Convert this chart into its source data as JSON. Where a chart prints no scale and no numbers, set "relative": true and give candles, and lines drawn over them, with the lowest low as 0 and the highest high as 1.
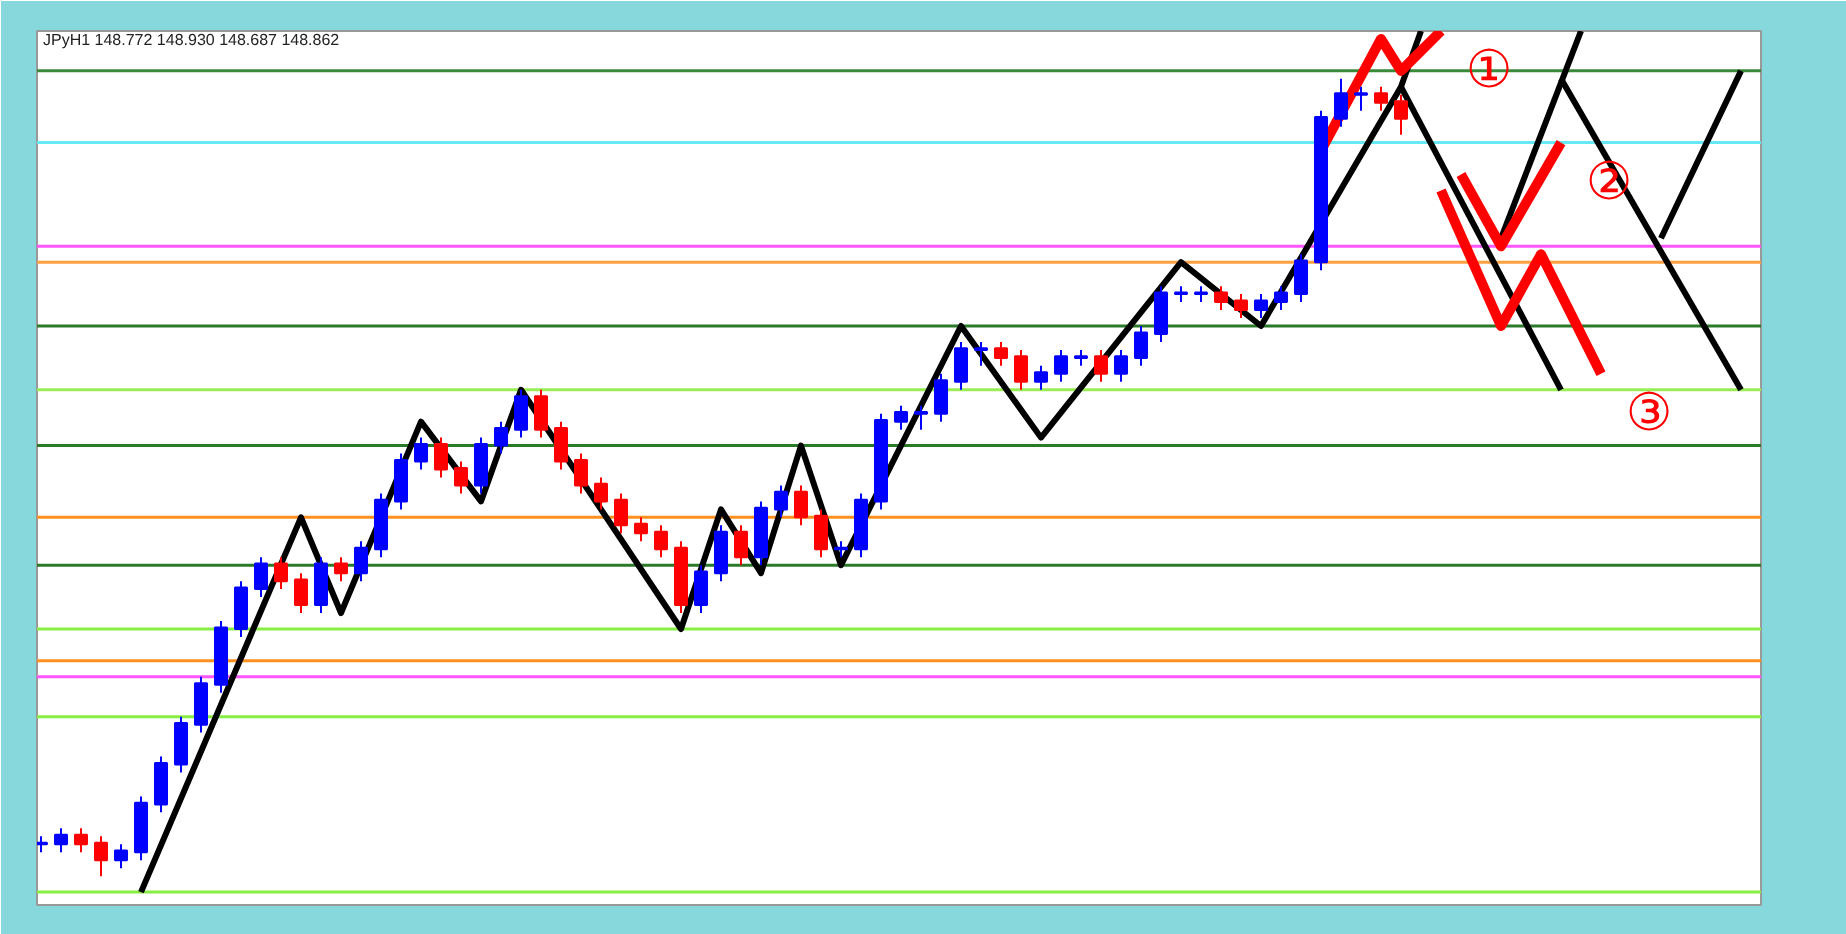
{
  "chart_data": {
    "type": "candlestick",
    "relative": true,
    "title": "JPyH1 148.772 148.930 148.687 148.862",
    "categories": [
      null,
      null,
      null,
      null,
      null,
      null,
      null,
      null,
      null,
      null,
      null,
      null,
      null,
      null,
      null,
      null,
      null,
      null,
      null,
      null,
      null,
      null,
      null,
      null,
      null,
      null,
      null,
      null,
      null,
      null,
      null,
      null,
      null,
      null,
      null,
      null,
      null,
      null,
      null,
      null,
      null,
      null,
      null,
      null,
      null,
      null,
      null,
      null,
      null,
      null,
      null,
      null,
      null,
      null,
      null,
      null,
      null,
      null,
      null,
      null,
      null,
      null,
      null,
      null,
      null,
      null,
      null,
      null,
      null,
      null,
      null,
      null,
      null,
      null,
      null,
      null,
      null,
      null,
      null,
      null,
      null,
      null,
      null,
      null,
      null,
      null
    ],
    "ohlc": [
      [
        0.04,
        0.05,
        0.03,
        0.04
      ],
      [
        0.04,
        0.06,
        0.03,
        0.05
      ],
      [
        0.05,
        0.06,
        0.03,
        0.04
      ],
      [
        0.04,
        0.05,
        0.0,
        0.02
      ],
      [
        0.02,
        0.04,
        0.01,
        0.03
      ],
      [
        0.03,
        0.1,
        0.02,
        0.09
      ],
      [
        0.09,
        0.15,
        0.08,
        0.14
      ],
      [
        0.14,
        0.2,
        0.13,
        0.19
      ],
      [
        0.19,
        0.25,
        0.18,
        0.24
      ],
      [
        0.24,
        0.32,
        0.23,
        0.31
      ],
      [
        0.31,
        0.37,
        0.3,
        0.36
      ],
      [
        0.36,
        0.4,
        0.35,
        0.39
      ],
      [
        0.39,
        0.4,
        0.36,
        0.37
      ],
      [
        0.37,
        0.38,
        0.33,
        0.34
      ],
      [
        0.34,
        0.4,
        0.33,
        0.39
      ],
      [
        0.39,
        0.4,
        0.37,
        0.38
      ],
      [
        0.38,
        0.42,
        0.37,
        0.41
      ],
      [
        0.41,
        0.48,
        0.4,
        0.47
      ],
      [
        0.47,
        0.53,
        0.46,
        0.52
      ],
      [
        0.52,
        0.55,
        0.51,
        0.54
      ],
      [
        0.54,
        0.55,
        0.5,
        0.51
      ],
      [
        0.51,
        0.52,
        0.48,
        0.49
      ],
      [
        0.49,
        0.55,
        0.48,
        0.54
      ],
      [
        0.54,
        0.57,
        0.53,
        0.56
      ],
      [
        0.56,
        0.61,
        0.55,
        0.6
      ],
      [
        0.6,
        0.61,
        0.55,
        0.56
      ],
      [
        0.56,
        0.57,
        0.51,
        0.52
      ],
      [
        0.52,
        0.53,
        0.48,
        0.49
      ],
      [
        0.49,
        0.5,
        0.46,
        0.47
      ],
      [
        0.47,
        0.48,
        0.43,
        0.44
      ],
      [
        0.44,
        0.45,
        0.42,
        0.43
      ],
      [
        0.43,
        0.44,
        0.4,
        0.41
      ],
      [
        0.41,
        0.42,
        0.33,
        0.34
      ],
      [
        0.34,
        0.39,
        0.33,
        0.38
      ],
      [
        0.38,
        0.44,
        0.37,
        0.43
      ],
      [
        0.43,
        0.44,
        0.39,
        0.4
      ],
      [
        0.4,
        0.47,
        0.39,
        0.46
      ],
      [
        0.46,
        0.49,
        0.45,
        0.48
      ],
      [
        0.48,
        0.49,
        0.44,
        0.45
      ],
      [
        0.45,
        0.46,
        0.4,
        0.41
      ],
      [
        0.41,
        0.42,
        0.4,
        0.41
      ],
      [
        0.41,
        0.48,
        0.4,
        0.47
      ],
      [
        0.47,
        0.58,
        0.46,
        0.57
      ],
      [
        0.57,
        0.59,
        0.56,
        0.58
      ],
      [
        0.58,
        0.59,
        0.56,
        0.58
      ],
      [
        0.58,
        0.63,
        0.57,
        0.62
      ],
      [
        0.62,
        0.67,
        0.61,
        0.66
      ],
      [
        0.66,
        0.67,
        0.64,
        0.66
      ],
      [
        0.66,
        0.67,
        0.64,
        0.65
      ],
      [
        0.65,
        0.66,
        0.61,
        0.62
      ],
      [
        0.62,
        0.64,
        0.61,
        0.63
      ],
      [
        0.63,
        0.66,
        0.62,
        0.65
      ],
      [
        0.65,
        0.66,
        0.64,
        0.65
      ],
      [
        0.65,
        0.66,
        0.62,
        0.63
      ],
      [
        0.63,
        0.66,
        0.62,
        0.65
      ],
      [
        0.65,
        0.69,
        0.64,
        0.68
      ],
      [
        0.68,
        0.74,
        0.67,
        0.73
      ],
      [
        0.73,
        0.74,
        0.72,
        0.73
      ],
      [
        0.73,
        0.74,
        0.72,
        0.73
      ],
      [
        0.73,
        0.74,
        0.71,
        0.72
      ],
      [
        0.72,
        0.73,
        0.7,
        0.71
      ],
      [
        0.71,
        0.73,
        0.7,
        0.72
      ],
      [
        0.72,
        0.74,
        0.71,
        0.73
      ],
      [
        0.73,
        0.78,
        0.72,
        0.77
      ],
      [
        0.77,
        0.96,
        0.76,
        0.95
      ],
      [
        0.95,
        1.0,
        0.94,
        0.98
      ],
      [
        0.98,
        0.99,
        0.96,
        0.98
      ],
      [
        0.98,
        0.99,
        0.96,
        0.97
      ],
      [
        0.97,
        0.98,
        0.93,
        0.95
      ],
      null,
      null,
      null,
      null,
      null,
      null,
      null,
      null,
      null,
      null,
      null,
      null,
      null,
      null,
      null,
      null,
      null
    ],
    "colors": [
      "#0000ff",
      "#0000ff",
      "#ff0000",
      "#ff0000",
      "#0000ff",
      "#0000ff",
      "#0000ff",
      "#0000ff",
      "#0000ff",
      "#0000ff",
      "#0000ff",
      "#0000ff",
      "#ff0000",
      "#ff0000",
      "#0000ff",
      "#ff0000",
      "#0000ff",
      "#0000ff",
      "#0000ff",
      "#0000ff",
      "#ff0000",
      "#ff0000",
      "#0000ff",
      "#0000ff",
      "#0000ff",
      "#ff0000",
      "#ff0000",
      "#ff0000",
      "#ff0000",
      "#ff0000",
      "#ff0000",
      "#ff0000",
      "#ff0000",
      "#0000ff",
      "#0000ff",
      "#ff0000",
      "#0000ff",
      "#0000ff",
      "#ff0000",
      "#ff0000",
      "#0000ff",
      "#0000ff",
      "#0000ff",
      "#0000ff",
      "#0000ff",
      "#0000ff",
      "#0000ff",
      "#0000ff",
      "#ff0000",
      "#ff0000",
      "#0000ff",
      "#0000ff",
      "#0000ff",
      "#ff0000",
      "#0000ff",
      "#0000ff",
      "#0000ff",
      "#0000ff",
      "#0000ff",
      "#ff0000",
      "#ff0000",
      "#0000ff",
      "#0000ff",
      "#0000ff",
      "#0000ff",
      "#0000ff",
      "#0000ff",
      "#ff0000",
      "#ff0000",
      null,
      null,
      null,
      null,
      null,
      null,
      null,
      null,
      null,
      null,
      null,
      null,
      null,
      null,
      null,
      null,
      null
    ],
    "series": [
      {
        "type": "line",
        "color": "#000000",
        "values": [
          null,
          null,
          null,
          null,
          null,
          -0.02,
          null,
          null,
          null,
          null,
          null,
          null,
          null,
          0.45,
          null,
          0.33,
          null,
          null,
          null,
          0.57,
          null,
          null,
          0.47,
          null,
          0.61,
          null,
          null,
          null,
          null,
          null,
          null,
          null,
          0.31,
          null,
          0.46,
          null,
          0.38,
          null,
          0.54,
          null,
          0.39,
          null,
          null,
          null,
          null,
          null,
          0.69,
          null,
          null,
          null,
          0.55,
          null,
          null,
          null,
          null,
          null,
          null,
          0.77,
          null,
          null,
          null,
          0.69,
          null,
          null,
          null,
          null,
          null,
          null,
          0.99,
          1.06,
          null,
          null,
          null,
          null,
          null,
          null,
          null,
          null,
          null,
          null,
          null,
          null,
          null,
          null,
          null,
          null
        ]
      },
      {
        "type": "line",
        "color": "#000000",
        "values": [
          null,
          null,
          null,
          null,
          null,
          null,
          null,
          null,
          null,
          null,
          null,
          null,
          null,
          null,
          null,
          null,
          null,
          null,
          null,
          null,
          null,
          null,
          null,
          null,
          null,
          null,
          null,
          null,
          null,
          null,
          null,
          null,
          null,
          null,
          null,
          null,
          null,
          null,
          null,
          null,
          null,
          null,
          null,
          null,
          null,
          null,
          null,
          null,
          null,
          null,
          null,
          null,
          null,
          null,
          null,
          null,
          null,
          null,
          null,
          null,
          null,
          null,
          null,
          null,
          null,
          null,
          null,
          null,
          0.99,
          null,
          null,
          null,
          null,
          null,
          null,
          null,
          0.61,
          null,
          null,
          null,
          null,
          null,
          null,
          null,
          null,
          null
        ]
      },
      {
        "type": "line",
        "color": "#000000",
        "values": [
          null,
          null,
          null,
          null,
          null,
          null,
          null,
          null,
          null,
          null,
          null,
          null,
          null,
          null,
          null,
          null,
          null,
          null,
          null,
          null,
          null,
          null,
          null,
          null,
          null,
          null,
          null,
          null,
          null,
          null,
          null,
          null,
          null,
          null,
          null,
          null,
          null,
          null,
          null,
          null,
          null,
          null,
          null,
          null,
          null,
          null,
          null,
          null,
          null,
          null,
          null,
          null,
          null,
          null,
          null,
          null,
          null,
          null,
          null,
          null,
          null,
          null,
          null,
          null,
          null,
          null,
          null,
          null,
          null,
          null,
          null,
          null,
          null,
          0.8,
          null,
          null,
          null,
          1.06,
          null,
          null,
          null,
          null,
          null,
          null,
          null,
          null
        ]
      },
      {
        "type": "line",
        "color": "#000000",
        "values": [
          null,
          null,
          null,
          null,
          null,
          null,
          null,
          null,
          null,
          null,
          null,
          null,
          null,
          null,
          null,
          null,
          null,
          null,
          null,
          null,
          null,
          null,
          null,
          null,
          null,
          null,
          null,
          null,
          null,
          null,
          null,
          null,
          null,
          null,
          null,
          null,
          null,
          null,
          null,
          null,
          null,
          null,
          null,
          null,
          null,
          null,
          null,
          null,
          null,
          null,
          null,
          null,
          null,
          null,
          null,
          null,
          null,
          null,
          null,
          null,
          null,
          null,
          null,
          null,
          null,
          null,
          null,
          null,
          null,
          null,
          null,
          null,
          null,
          null,
          null,
          null,
          1.0,
          null,
          null,
          null,
          null,
          null,
          null,
          null,
          null,
          0.61
        ]
      },
      {
        "type": "line",
        "color": "#000000",
        "values": [
          null,
          null,
          null,
          null,
          null,
          null,
          null,
          null,
          null,
          null,
          null,
          null,
          null,
          null,
          null,
          null,
          null,
          null,
          null,
          null,
          null,
          null,
          null,
          null,
          null,
          null,
          null,
          null,
          null,
          null,
          null,
          null,
          null,
          null,
          null,
          null,
          null,
          null,
          null,
          null,
          null,
          null,
          null,
          null,
          null,
          null,
          null,
          null,
          null,
          null,
          null,
          null,
          null,
          null,
          null,
          null,
          null,
          null,
          null,
          null,
          null,
          null,
          null,
          null,
          null,
          null,
          null,
          null,
          null,
          null,
          null,
          null,
          null,
          null,
          null,
          null,
          null,
          null,
          null,
          null,
          null,
          0.8,
          null,
          null,
          null,
          1.01
        ]
      },
      {
        "type": "line",
        "color": "#ff0000",
        "values": [
          null,
          null,
          null,
          null,
          null,
          null,
          null,
          null,
          null,
          null,
          null,
          null,
          null,
          null,
          null,
          null,
          null,
          null,
          null,
          null,
          null,
          null,
          null,
          null,
          null,
          null,
          null,
          null,
          null,
          null,
          null,
          null,
          null,
          null,
          null,
          null,
          null,
          null,
          null,
          null,
          null,
          null,
          null,
          null,
          null,
          null,
          null,
          null,
          null,
          null,
          null,
          null,
          null,
          null,
          null,
          null,
          null,
          null,
          null,
          null,
          null,
          null,
          null,
          null,
          0.91,
          null,
          null,
          1.05,
          1.01,
          null,
          1.06,
          null,
          null,
          null,
          null,
          null,
          null,
          null,
          null,
          null,
          null,
          null,
          null,
          null,
          null,
          null
        ]
      },
      {
        "type": "line",
        "color": "#ff0000",
        "values": [
          null,
          null,
          null,
          null,
          null,
          null,
          null,
          null,
          null,
          null,
          null,
          null,
          null,
          null,
          null,
          null,
          null,
          null,
          null,
          null,
          null,
          null,
          null,
          null,
          null,
          null,
          null,
          null,
          null,
          null,
          null,
          null,
          null,
          null,
          null,
          null,
          null,
          null,
          null,
          null,
          null,
          null,
          null,
          null,
          null,
          null,
          null,
          null,
          null,
          null,
          null,
          null,
          null,
          null,
          null,
          null,
          null,
          null,
          null,
          null,
          null,
          null,
          null,
          null,
          null,
          null,
          null,
          null,
          null,
          null,
          null,
          0.88,
          null,
          0.79,
          null,
          null,
          0.92,
          null,
          null,
          null,
          null,
          null,
          null,
          null,
          null,
          null
        ]
      },
      {
        "type": "line",
        "color": "#ff0000",
        "values": [
          null,
          null,
          null,
          null,
          null,
          null,
          null,
          null,
          null,
          null,
          null,
          null,
          null,
          null,
          null,
          null,
          null,
          null,
          null,
          null,
          null,
          null,
          null,
          null,
          null,
          null,
          null,
          null,
          null,
          null,
          null,
          null,
          null,
          null,
          null,
          null,
          null,
          null,
          null,
          null,
          null,
          null,
          null,
          null,
          null,
          null,
          null,
          null,
          null,
          null,
          null,
          null,
          null,
          null,
          null,
          null,
          null,
          null,
          null,
          null,
          null,
          null,
          null,
          null,
          null,
          null,
          null,
          null,
          null,
          null,
          0.86,
          null,
          null,
          0.69,
          null,
          0.78,
          null,
          null,
          0.63,
          null,
          null,
          null,
          null,
          null,
          null,
          null
        ]
      }
    ],
    "ref_lines": [
      {
        "axis": "y",
        "value": 1.01,
        "color": "#3a8a3a"
      },
      {
        "axis": "y",
        "value": 0.92,
        "color": "#66e8f5"
      },
      {
        "axis": "y",
        "value": 0.79,
        "color": "#ff55ff"
      },
      {
        "axis": "y",
        "value": 0.77,
        "color": "#ffa040"
      },
      {
        "axis": "y",
        "value": 0.69,
        "color": "#2a7a2a"
      },
      {
        "axis": "y",
        "value": 0.61,
        "color": "#99ee55"
      },
      {
        "axis": "y",
        "value": 0.54,
        "color": "#2a7a2a"
      },
      {
        "axis": "y",
        "value": 0.45,
        "color": "#ff9020"
      },
      {
        "axis": "y",
        "value": 0.39,
        "color": "#2a7a2a"
      },
      {
        "axis": "y",
        "value": 0.31,
        "color": "#88ee44"
      },
      {
        "axis": "y",
        "value": 0.27,
        "color": "#ff9020"
      },
      {
        "axis": "y",
        "value": 0.25,
        "color": "#ff55ff"
      },
      {
        "axis": "y",
        "value": 0.2,
        "color": "#88ee44"
      },
      {
        "axis": "y",
        "value": -0.02,
        "color": "#88ee44"
      }
    ],
    "annotations": [
      "①",
      "②",
      "③"
    ],
    "grid": false
  }
}
